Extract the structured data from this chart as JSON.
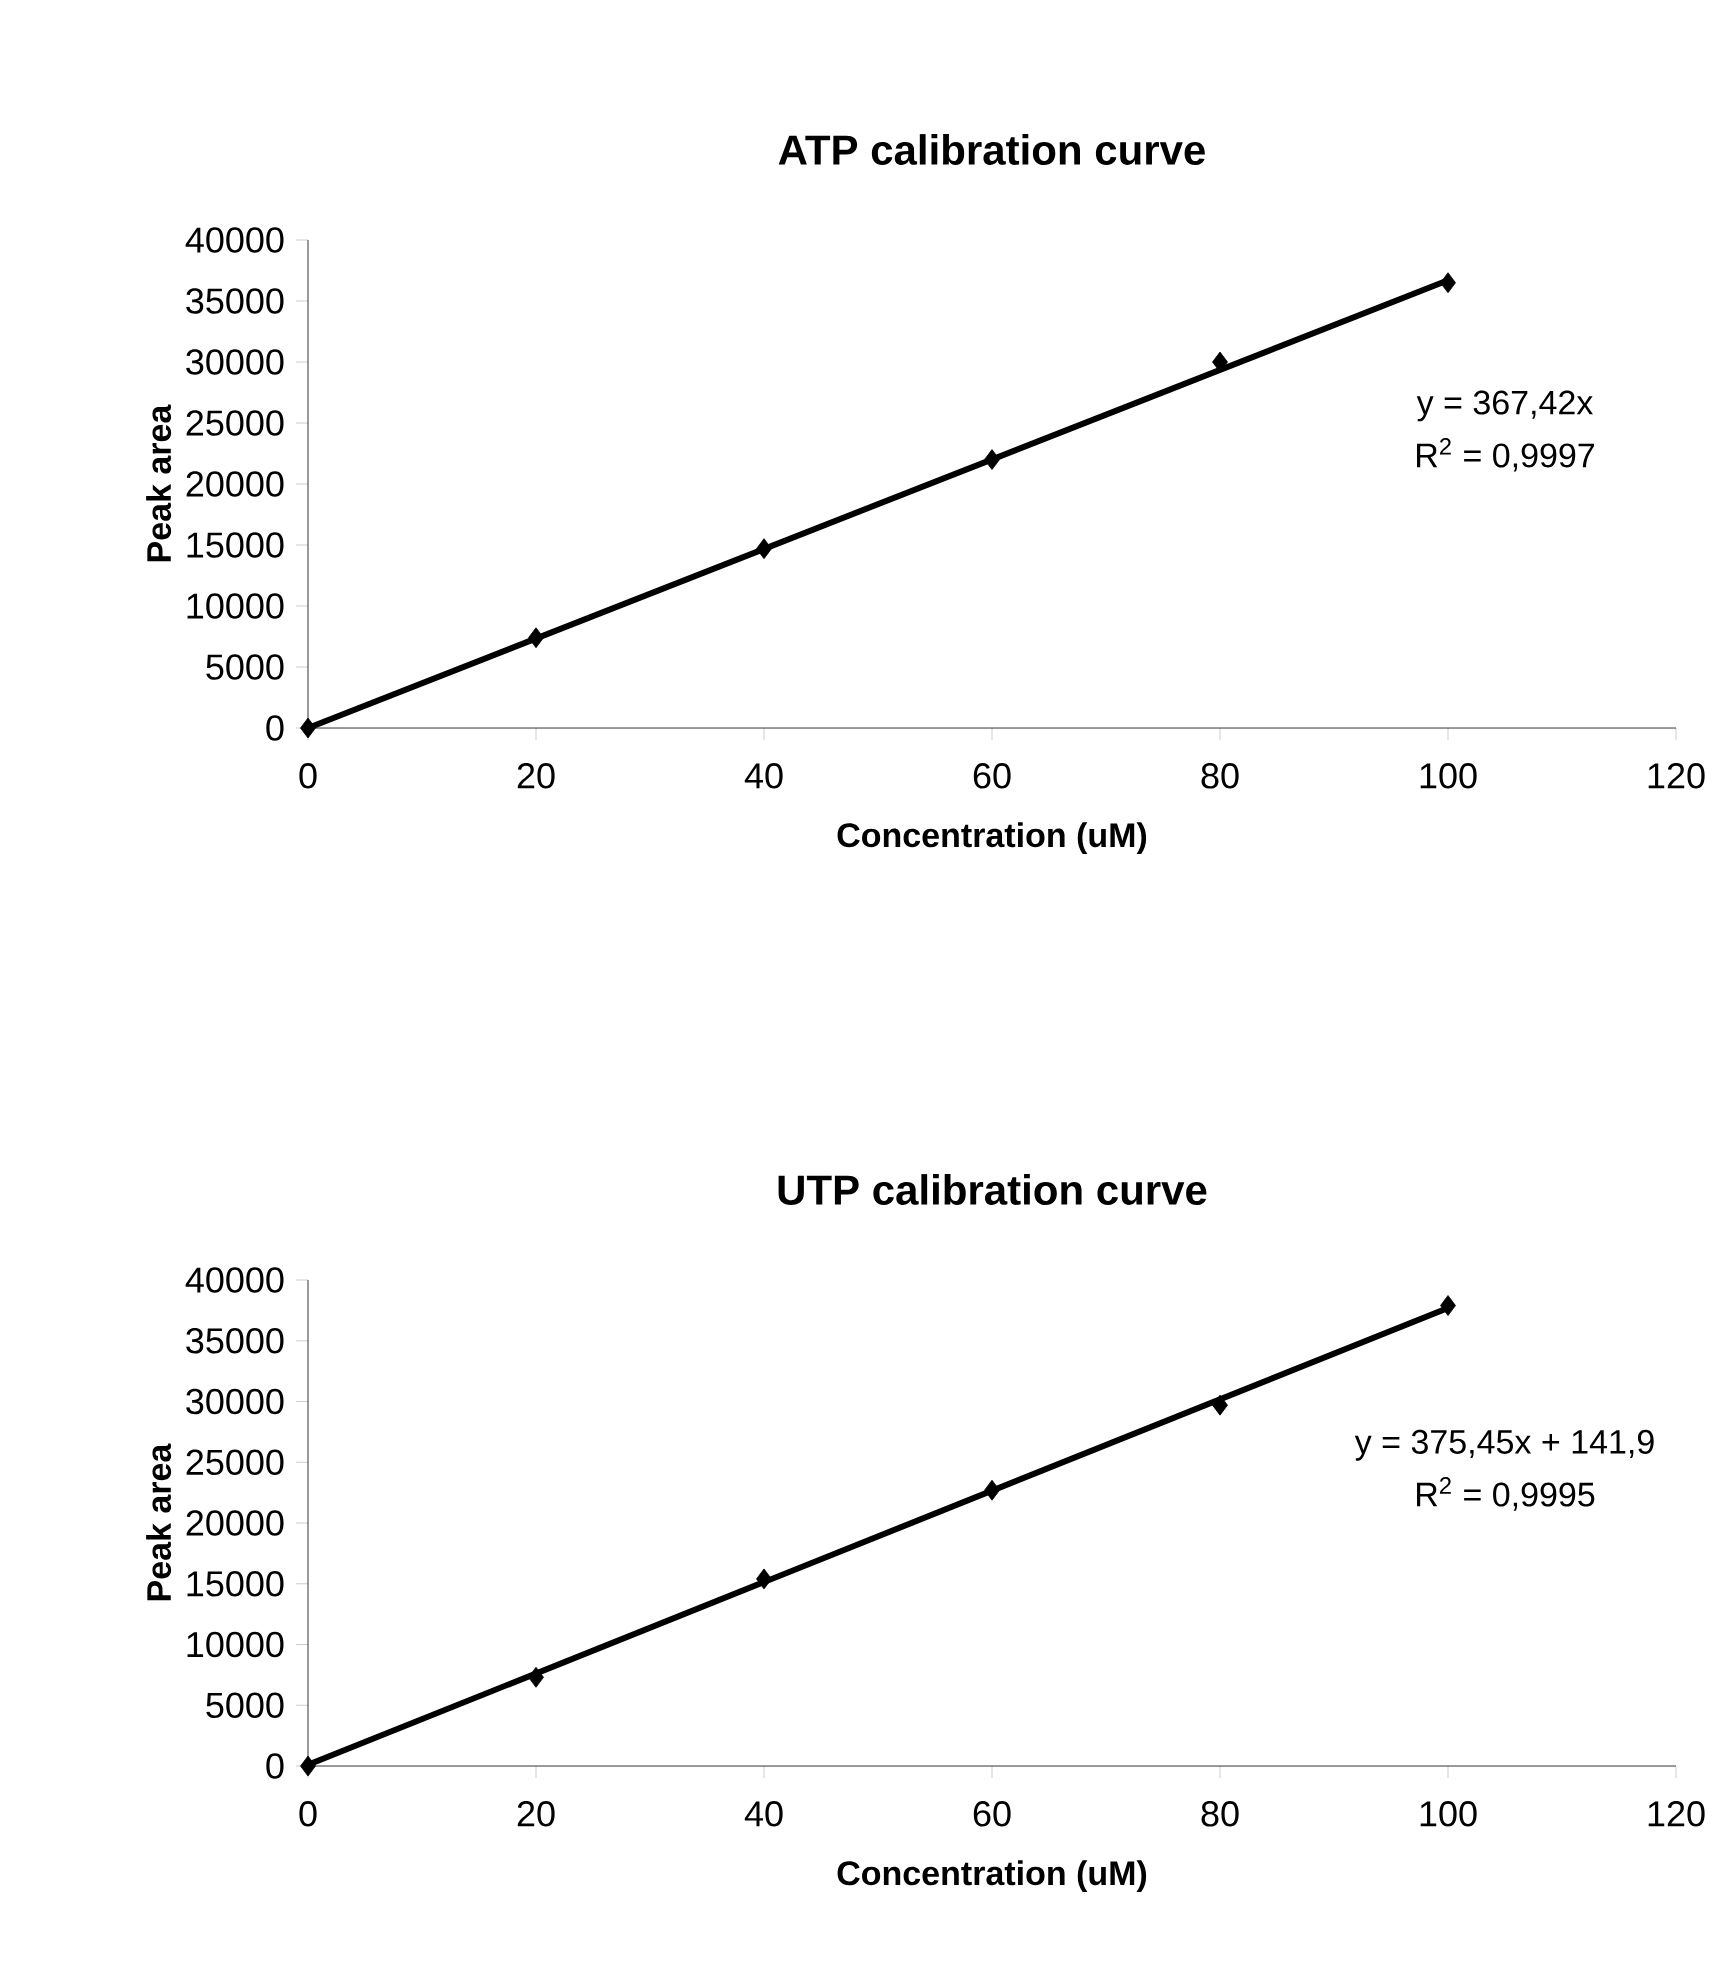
{
  "chart_data": [
    {
      "type": "scatter",
      "title": "ATP calibration curve",
      "xlabel": "Concentration (uM)",
      "ylabel": "Peak area",
      "xlim": [
        0,
        120
      ],
      "xticks": [
        0,
        20,
        40,
        60,
        80,
        100,
        120
      ],
      "ylim": [
        0,
        40000
      ],
      "yticks": [
        0,
        5000,
        10000,
        15000,
        20000,
        25000,
        30000,
        35000,
        40000
      ],
      "series": [
        {
          "marker": "diamond",
          "color": "#000000",
          "x": [
            0,
            20,
            40,
            60,
            80,
            100
          ],
          "values": [
            0,
            7400,
            14700,
            22000,
            30000,
            36500
          ]
        },
        {
          "type": "line",
          "marker": "none",
          "color": "#000000",
          "x": [
            0,
            100
          ],
          "values": [
            0,
            36700
          ]
        }
      ],
      "annotations": [
        "y = 367,42x",
        "R$^{2}$ = 0,9997"
      ]
    },
    {
      "type": "scatter",
      "title": "UTP calibration curve",
      "xlabel": "Concentration (uM)",
      "ylabel": "Peak area",
      "xlim": [
        0,
        120
      ],
      "xticks": [
        0,
        20,
        40,
        60,
        80,
        100,
        120
      ],
      "ylim": [
        0,
        40000
      ],
      "yticks": [
        0,
        5000,
        10000,
        15000,
        20000,
        25000,
        30000,
        35000,
        40000
      ],
      "series": [
        {
          "marker": "diamond",
          "color": "#000000",
          "x": [
            0,
            20,
            40,
            60,
            80,
            100
          ],
          "values": [
            0,
            7300,
            15400,
            22700,
            29700,
            37900
          ]
        },
        {
          "type": "line",
          "marker": "none",
          "color": "#000000",
          "x": [
            0,
            100
          ],
          "values": [
            100,
            37700
          ]
        }
      ],
      "annotations": [
        "y = 375,45x + 141,9",
        "R$^{2}$ = 0,9995"
      ]
    }
  ]
}
